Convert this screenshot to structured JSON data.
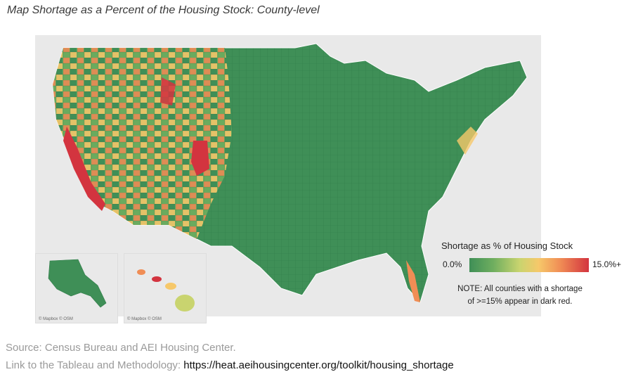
{
  "title": "Map Shortage as a Percent of the Housing Stock: County-level",
  "legend": {
    "title": "Shortage as % of Housing Stock",
    "min_label": "0.0%",
    "max_label": "15.0%+",
    "note_line1": "NOTE: All counties with a shortage",
    "note_line2": "of >=15% appear in dark red.",
    "colors": [
      "#3f8f57",
      "#6fae5f",
      "#c9d46f",
      "#f6c86a",
      "#f08d55",
      "#d3343f"
    ]
  },
  "insets": {
    "alaska_credit": "© Mapbox © OSM",
    "hawaii_credit": "© Mapbox © OSM"
  },
  "source": "Source: Census Bureau and AEI Housing Center.",
  "link": {
    "prefix": "Link to the Tableau and Methodology: ",
    "url": "https://heat.aeihousingcenter.org/toolkit/housing_shortage"
  }
}
